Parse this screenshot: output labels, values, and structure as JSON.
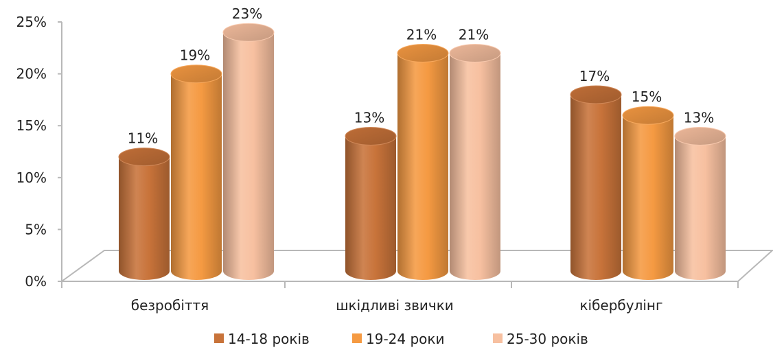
{
  "chart_data": {
    "type": "bar",
    "style": "3d-cylinder",
    "categories": [
      "безробіття",
      "шкідливі звички",
      "кібербулінг"
    ],
    "series": [
      {
        "name": "14-18 років",
        "values": [
          11,
          13,
          17
        ],
        "labels": [
          "11%",
          "13%",
          "17%"
        ],
        "color": "#C8733A"
      },
      {
        "name": "19-24 роки",
        "values": [
          19,
          21,
          15
        ],
        "labels": [
          "19%",
          "21%",
          "15%"
        ],
        "color": "#F59A42"
      },
      {
        "name": "25-30 років",
        "values": [
          23,
          21,
          13
        ],
        "labels": [
          "23%",
          "21%",
          "13%"
        ],
        "color": "#F7C0A0"
      }
    ],
    "ylim": [
      0,
      25
    ],
    "yticks": [
      0,
      5,
      10,
      15,
      20,
      25
    ],
    "ytick_labels": [
      "0%",
      "5%",
      "10%",
      "15%",
      "20%",
      "25%"
    ],
    "grid": false,
    "legend": "bottom"
  }
}
